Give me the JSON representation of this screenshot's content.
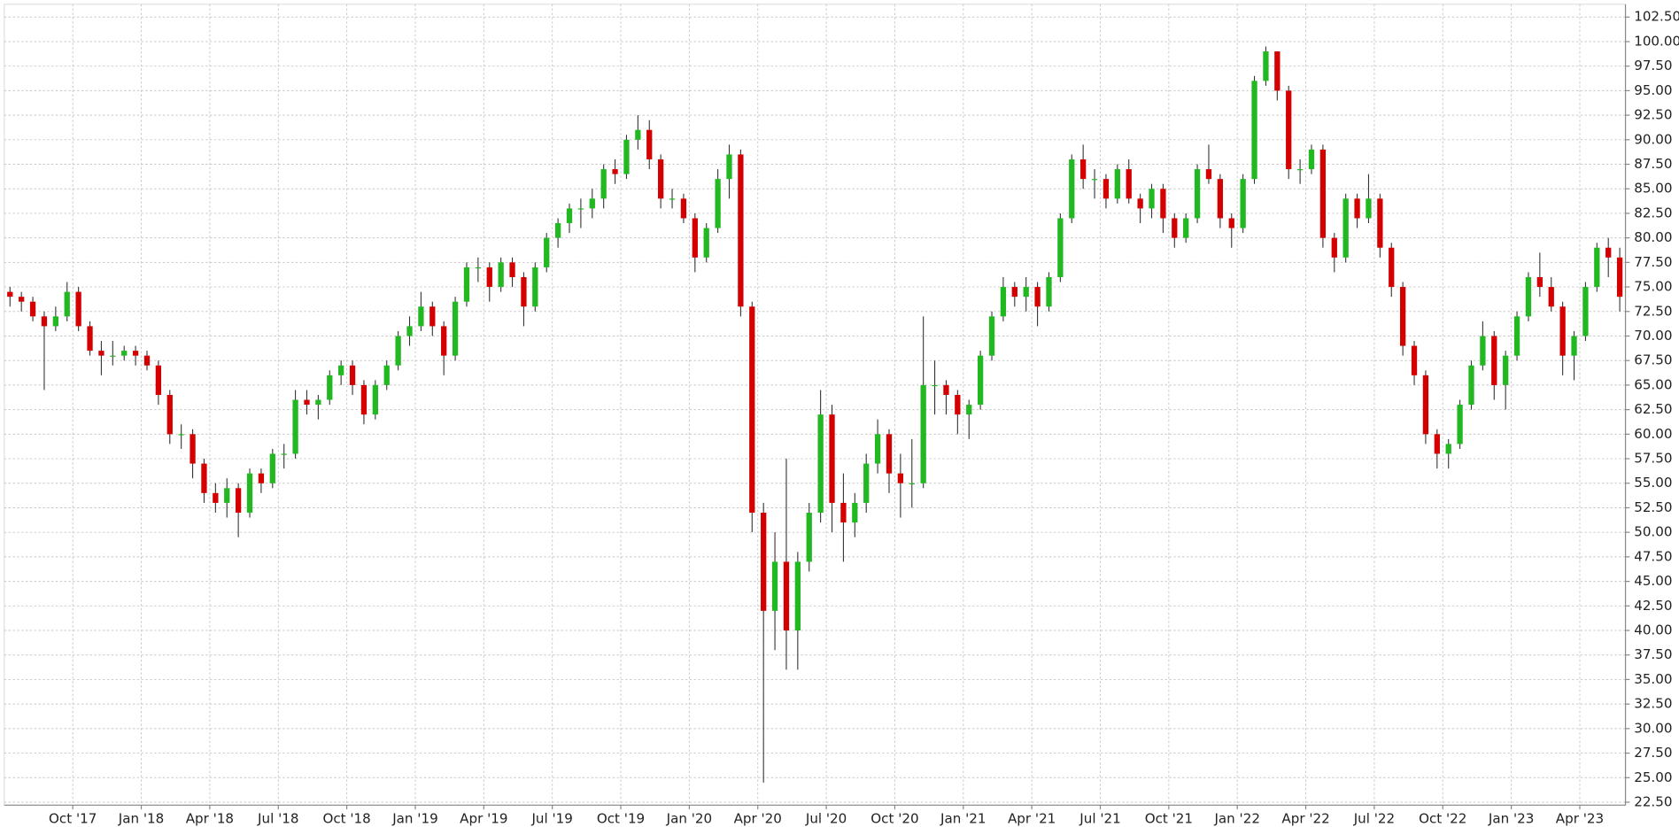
{
  "chart_data": {
    "type": "candlestick",
    "x": [
      "2017-07",
      "2017-07",
      "2017-08",
      "2017-08",
      "2017-09",
      "2017-09",
      "2017-10",
      "2017-10",
      "2017-11",
      "2017-11",
      "2017-12",
      "2017-12",
      "2018-01",
      "2018-01",
      "2018-02",
      "2018-02",
      "2018-03",
      "2018-03",
      "2018-04",
      "2018-04",
      "2018-05",
      "2018-05",
      "2018-06",
      "2018-06",
      "2018-07",
      "2018-07",
      "2018-08",
      "2018-08",
      "2018-09",
      "2018-09",
      "2018-10",
      "2018-10",
      "2018-11",
      "2018-11",
      "2018-12",
      "2018-12",
      "2019-01",
      "2019-01",
      "2019-02",
      "2019-02",
      "2019-03",
      "2019-03",
      "2019-04",
      "2019-04",
      "2019-05",
      "2019-05",
      "2019-06",
      "2019-06",
      "2019-07",
      "2019-07",
      "2019-08",
      "2019-08",
      "2019-09",
      "2019-09",
      "2019-10",
      "2019-10",
      "2019-11",
      "2019-11",
      "2019-12",
      "2019-12",
      "2020-01",
      "2020-01",
      "2020-02",
      "2020-02",
      "2020-03",
      "2020-03",
      "2020-04",
      "2020-04",
      "2020-05",
      "2020-05",
      "2020-06",
      "2020-06",
      "2020-07",
      "2020-07",
      "2020-08",
      "2020-08",
      "2020-09",
      "2020-09",
      "2020-10",
      "2020-10",
      "2020-11",
      "2020-11",
      "2020-12",
      "2020-12",
      "2021-01",
      "2021-01",
      "2021-02",
      "2021-02",
      "2021-03",
      "2021-03",
      "2021-04",
      "2021-04",
      "2021-05",
      "2021-05",
      "2021-06",
      "2021-06",
      "2021-07",
      "2021-07",
      "2021-08",
      "2021-08",
      "2021-09",
      "2021-09",
      "2021-10",
      "2021-10",
      "2021-11",
      "2021-11",
      "2021-12",
      "2021-12",
      "2022-01",
      "2022-01",
      "2022-02",
      "2022-02",
      "2022-03",
      "2022-03",
      "2022-04",
      "2022-04",
      "2022-05",
      "2022-05",
      "2022-06",
      "2022-06",
      "2022-07",
      "2022-07",
      "2022-08",
      "2022-08",
      "2022-09",
      "2022-09",
      "2022-10",
      "2022-10",
      "2022-11",
      "2022-11",
      "2022-12",
      "2022-12",
      "2023-01",
      "2023-01",
      "2023-02",
      "2023-02",
      "2023-03",
      "2023-03",
      "2023-04",
      "2023-04",
      "2023-05",
      "2023-05"
    ],
    "ohlc": [
      [
        74.5,
        75,
        73,
        74
      ],
      [
        74,
        74.5,
        72.5,
        73.5
      ],
      [
        73.5,
        74,
        71.5,
        72
      ],
      [
        72,
        72.5,
        64.5,
        71
      ],
      [
        71,
        73,
        70.5,
        72
      ],
      [
        72,
        75.5,
        71.5,
        74.5
      ],
      [
        74.5,
        75,
        70.5,
        71
      ],
      [
        71,
        71.5,
        68,
        68.5
      ],
      [
        68.5,
        69.5,
        66,
        68
      ],
      [
        68,
        69.5,
        67,
        68
      ],
      [
        68,
        69,
        67.5,
        68.5
      ],
      [
        68.5,
        69,
        67,
        68
      ],
      [
        68,
        68.5,
        66.5,
        67
      ],
      [
        67,
        67.5,
        63,
        64
      ],
      [
        64,
        64.5,
        59,
        60
      ],
      [
        60,
        61,
        58.5,
        60
      ],
      [
        60,
        60.5,
        55.5,
        57
      ],
      [
        57,
        57.5,
        53,
        54
      ],
      [
        54,
        55,
        52,
        53
      ],
      [
        53,
        55.5,
        51.5,
        54.5
      ],
      [
        54.5,
        55,
        49.5,
        52
      ],
      [
        52,
        56.5,
        51.5,
        56
      ],
      [
        56,
        56.5,
        54,
        55
      ],
      [
        55,
        58.5,
        54.5,
        58
      ],
      [
        58,
        59,
        56.5,
        58
      ],
      [
        58,
        64.5,
        57.5,
        63.5
      ],
      [
        63.5,
        64.5,
        62,
        63
      ],
      [
        63,
        64,
        61.5,
        63.5
      ],
      [
        63.5,
        66.5,
        63,
        66
      ],
      [
        66,
        67.5,
        65,
        67
      ],
      [
        67,
        67.5,
        64,
        65
      ],
      [
        65,
        65.5,
        61,
        62
      ],
      [
        62,
        65.5,
        61.5,
        65
      ],
      [
        65,
        67.5,
        64.5,
        67
      ],
      [
        67,
        70.5,
        66.5,
        70
      ],
      [
        70,
        72,
        69,
        71
      ],
      [
        71,
        74.5,
        70.5,
        73
      ],
      [
        73,
        73.5,
        70,
        71
      ],
      [
        71,
        71.5,
        66,
        68
      ],
      [
        68,
        74,
        67.5,
        73.5
      ],
      [
        73.5,
        77.5,
        73,
        77
      ],
      [
        77,
        78,
        75.5,
        77
      ],
      [
        77,
        77.5,
        73.5,
        75
      ],
      [
        75,
        78,
        74.5,
        77.5
      ],
      [
        77.5,
        78,
        75,
        76
      ],
      [
        76,
        76.5,
        71,
        73
      ],
      [
        73,
        77.5,
        72.5,
        77
      ],
      [
        77,
        80.5,
        76.5,
        80
      ],
      [
        80,
        82,
        79,
        81.5
      ],
      [
        81.5,
        83.5,
        80.5,
        83
      ],
      [
        83,
        84,
        81,
        83
      ],
      [
        83,
        85,
        82,
        84
      ],
      [
        84,
        87.5,
        83,
        87
      ],
      [
        87,
        88,
        85.5,
        86.5
      ],
      [
        86.5,
        90.5,
        86,
        90
      ],
      [
        90,
        92.5,
        89,
        91
      ],
      [
        91,
        92,
        87,
        88
      ],
      [
        88,
        88.5,
        83,
        84
      ],
      [
        84,
        85,
        83,
        84
      ],
      [
        84,
        84.5,
        81.5,
        82
      ],
      [
        82,
        82.5,
        76.5,
        78
      ],
      [
        78,
        81.5,
        77.5,
        81
      ],
      [
        81,
        87,
        80.5,
        86
      ],
      [
        86,
        89.5,
        84,
        88.5
      ],
      [
        88.5,
        89,
        72,
        73
      ],
      [
        73,
        73.5,
        50,
        52
      ],
      [
        52,
        53,
        24.5,
        42
      ],
      [
        42,
        50,
        38,
        47
      ],
      [
        47,
        57.5,
        36,
        40
      ],
      [
        40,
        48,
        36,
        47
      ],
      [
        47,
        53,
        46,
        52
      ],
      [
        52,
        64.5,
        51,
        62
      ],
      [
        62,
        63,
        50,
        53
      ],
      [
        53,
        56,
        47,
        51
      ],
      [
        51,
        54,
        49.5,
        53
      ],
      [
        53,
        58,
        52,
        57
      ],
      [
        57,
        61.5,
        56,
        60
      ],
      [
        60,
        60.5,
        54,
        56
      ],
      [
        56,
        58,
        51.5,
        55
      ],
      [
        55,
        59.5,
        52.5,
        55
      ],
      [
        55,
        72,
        54.5,
        65
      ],
      [
        65,
        67.5,
        62,
        65
      ],
      [
        65,
        65.5,
        62,
        64
      ],
      [
        64,
        64.5,
        60,
        62
      ],
      [
        62,
        63.5,
        59.5,
        63
      ],
      [
        63,
        68.5,
        62.5,
        68
      ],
      [
        68,
        72.5,
        67.5,
        72
      ],
      [
        72,
        76,
        71.5,
        75
      ],
      [
        75,
        75.5,
        73,
        74
      ],
      [
        74,
        76,
        72.5,
        75
      ],
      [
        75,
        75.5,
        71,
        73
      ],
      [
        73,
        76.5,
        72.5,
        76
      ],
      [
        76,
        82.5,
        75.5,
        82
      ],
      [
        82,
        88.5,
        81.5,
        88
      ],
      [
        88,
        89.5,
        85,
        86
      ],
      [
        86,
        87,
        84,
        86
      ],
      [
        86,
        86.5,
        83,
        84
      ],
      [
        84,
        87.5,
        83.5,
        87
      ],
      [
        87,
        88,
        83.5,
        84
      ],
      [
        84,
        84.5,
        81.5,
        83
      ],
      [
        83,
        85.5,
        82,
        85
      ],
      [
        85,
        85.5,
        80.5,
        82
      ],
      [
        82,
        82.5,
        79,
        80
      ],
      [
        80,
        82.5,
        79.5,
        82
      ],
      [
        82,
        87.5,
        81.5,
        87
      ],
      [
        87,
        89.5,
        85.5,
        86
      ],
      [
        86,
        86.5,
        81,
        82
      ],
      [
        82,
        82.5,
        79,
        81
      ],
      [
        81,
        86.5,
        80.5,
        86
      ],
      [
        86,
        96.5,
        85.5,
        96
      ],
      [
        96,
        99.5,
        95.5,
        99
      ],
      [
        99,
        99,
        94,
        95
      ],
      [
        95,
        95.5,
        86,
        87
      ],
      [
        87,
        88,
        85.5,
        87
      ],
      [
        87,
        89.5,
        86.5,
        89
      ],
      [
        89,
        89.5,
        79,
        80
      ],
      [
        80,
        80.5,
        76.5,
        78
      ],
      [
        78,
        84.5,
        77.5,
        84
      ],
      [
        84,
        84.5,
        81,
        82
      ],
      [
        82,
        86.5,
        81.5,
        84
      ],
      [
        84,
        84.5,
        78,
        79
      ],
      [
        79,
        79.5,
        74,
        75
      ],
      [
        75,
        75.5,
        68,
        69
      ],
      [
        69,
        69.5,
        65,
        66
      ],
      [
        66,
        66.5,
        59,
        60
      ],
      [
        60,
        60.5,
        56.5,
        58
      ],
      [
        58,
        59.5,
        56.5,
        59
      ],
      [
        59,
        63.5,
        58.5,
        63
      ],
      [
        63,
        67.5,
        62.5,
        67
      ],
      [
        67,
        71.5,
        66.5,
        70
      ],
      [
        70,
        70.5,
        63.5,
        65
      ],
      [
        65,
        68.5,
        62.5,
        68
      ],
      [
        68,
        72.5,
        67.5,
        72
      ],
      [
        72,
        76.5,
        71.5,
        76
      ],
      [
        76,
        78.5,
        74,
        75
      ],
      [
        75,
        76,
        72.5,
        73
      ],
      [
        73,
        73.5,
        66,
        68
      ],
      [
        68,
        70.5,
        65.5,
        70
      ],
      [
        70,
        75.5,
        69.5,
        75
      ],
      [
        75,
        79.5,
        74.5,
        79
      ],
      [
        79,
        80,
        76,
        78
      ],
      [
        78,
        79,
        72.5,
        74
      ]
    ],
    "up_color": "#22b822",
    "down_color": "#d40000",
    "xlim": [
      "2017-07",
      "2023-06"
    ],
    "xticks": [
      {
        "value": "2017-10",
        "label": "Oct '17"
      },
      {
        "value": "2018-01",
        "label": "Jan '18"
      },
      {
        "value": "2018-04",
        "label": "Apr '18"
      },
      {
        "value": "2018-07",
        "label": "Jul '18"
      },
      {
        "value": "2018-10",
        "label": "Oct '18"
      },
      {
        "value": "2019-01",
        "label": "Jan '19"
      },
      {
        "value": "2019-04",
        "label": "Apr '19"
      },
      {
        "value": "2019-07",
        "label": "Jul '19"
      },
      {
        "value": "2019-10",
        "label": "Oct '19"
      },
      {
        "value": "2020-01",
        "label": "Jan '20"
      },
      {
        "value": "2020-04",
        "label": "Apr '20"
      },
      {
        "value": "2020-07",
        "label": "Jul '20"
      },
      {
        "value": "2020-10",
        "label": "Oct '20"
      },
      {
        "value": "2021-01",
        "label": "Jan '21"
      },
      {
        "value": "2021-04",
        "label": "Apr '21"
      },
      {
        "value": "2021-07",
        "label": "Jul '21"
      },
      {
        "value": "2021-10",
        "label": "Oct '21"
      },
      {
        "value": "2022-01",
        "label": "Jan '22"
      },
      {
        "value": "2022-04",
        "label": "Apr '22"
      },
      {
        "value": "2022-07",
        "label": "Jul '22"
      },
      {
        "value": "2022-10",
        "label": "Oct '22"
      },
      {
        "value": "2023-01",
        "label": "Jan '23"
      },
      {
        "value": "2023-04",
        "label": "Apr '23"
      }
    ],
    "ylim": [
      22.2,
      103.8
    ],
    "yticks": [
      {
        "value": 22.5,
        "label": "22.50"
      },
      {
        "value": 25,
        "label": "25.00"
      },
      {
        "value": 27.5,
        "label": "27.50"
      },
      {
        "value": 30,
        "label": "30.00"
      },
      {
        "value": 32.5,
        "label": "32.50"
      },
      {
        "value": 35,
        "label": "35.00"
      },
      {
        "value": 37.5,
        "label": "37.50"
      },
      {
        "value": 40,
        "label": "40.00"
      },
      {
        "value": 42.5,
        "label": "42.50"
      },
      {
        "value": 45,
        "label": "45.00"
      },
      {
        "value": 47.5,
        "label": "47.50"
      },
      {
        "value": 50,
        "label": "50.00"
      },
      {
        "value": 52.5,
        "label": "52.50"
      },
      {
        "value": 55,
        "label": "55.00"
      },
      {
        "value": 57.5,
        "label": "57.50"
      },
      {
        "value": 60,
        "label": "60.00"
      },
      {
        "value": 62.5,
        "label": "62.50"
      },
      {
        "value": 65,
        "label": "65.00"
      },
      {
        "value": 67.5,
        "label": "67.50"
      },
      {
        "value": 70,
        "label": "70.00"
      },
      {
        "value": 72.5,
        "label": "72.50"
      },
      {
        "value": 75,
        "label": "75.00"
      },
      {
        "value": 77.5,
        "label": "77.50"
      },
      {
        "value": 80,
        "label": "80.00"
      },
      {
        "value": 82.5,
        "label": "82.50"
      },
      {
        "value": 85,
        "label": "85.00"
      },
      {
        "value": 87.5,
        "label": "87.50"
      },
      {
        "value": 90,
        "label": "90.00"
      },
      {
        "value": 92.5,
        "label": "92.50"
      },
      {
        "value": 95,
        "label": "95.00"
      },
      {
        "value": 97.5,
        "label": "97.50"
      },
      {
        "value": 100,
        "label": "100.00"
      },
      {
        "value": 102.5,
        "label": "102.50"
      }
    ],
    "grid": true
  }
}
